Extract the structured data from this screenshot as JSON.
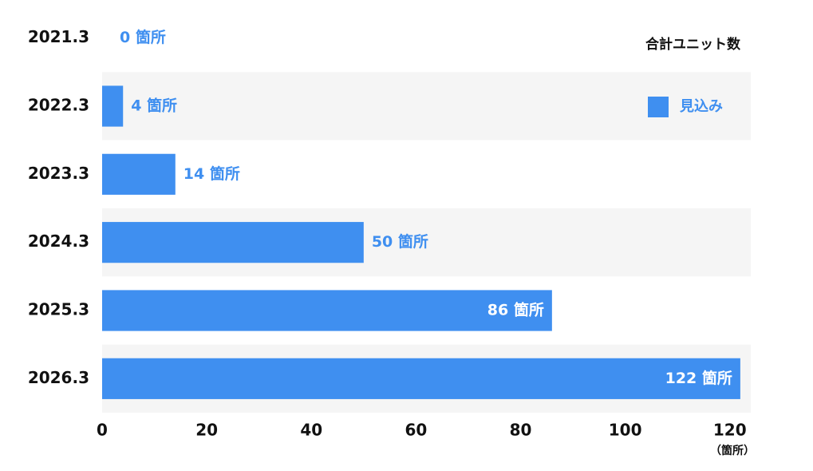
{
  "chart_data": {
    "type": "hbar",
    "title": "合計ユニット数",
    "x_unit_label": "（箇所）",
    "categories": [
      "2021.3",
      "2022.3",
      "2023.3",
      "2024.3",
      "2025.3",
      "2026.3"
    ],
    "series": [
      {
        "name": "見込み",
        "color": "#3f8ff0",
        "values": [
          0,
          4,
          14,
          50,
          86,
          122
        ],
        "value_labels": [
          "0 箇所",
          "4 箇所",
          "14 箇所",
          "50 箇所",
          "86 箇所",
          "122 箇所"
        ]
      }
    ],
    "xlim": [
      0,
      124
    ],
    "xticks": [
      0,
      20,
      40,
      60,
      80,
      100,
      120
    ]
  }
}
